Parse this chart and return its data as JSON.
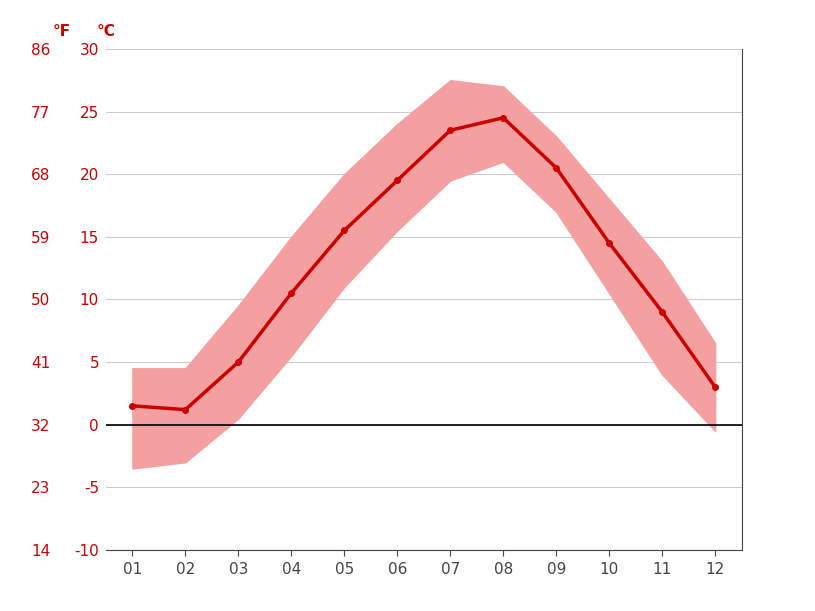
{
  "months": [
    1,
    2,
    3,
    4,
    5,
    6,
    7,
    8,
    9,
    10,
    11,
    12
  ],
  "month_labels": [
    "01",
    "02",
    "03",
    "04",
    "05",
    "06",
    "07",
    "08",
    "09",
    "10",
    "11",
    "12"
  ],
  "temp_mean": [
    1.5,
    1.2,
    5.0,
    10.5,
    15.5,
    19.5,
    23.5,
    24.5,
    20.5,
    14.5,
    9.0,
    3.0
  ],
  "temp_max": [
    4.5,
    4.5,
    9.5,
    15.0,
    20.0,
    24.0,
    27.5,
    27.0,
    23.0,
    18.0,
    13.0,
    6.5
  ],
  "temp_min": [
    -3.5,
    -3.0,
    0.5,
    5.5,
    11.0,
    15.5,
    19.5,
    21.0,
    17.0,
    10.5,
    4.0,
    -0.5
  ],
  "ylim": [
    -10,
    30
  ],
  "yticks_c": [
    -10,
    -5,
    0,
    5,
    10,
    15,
    20,
    25,
    30
  ],
  "yticks_f": [
    14,
    23,
    32,
    41,
    50,
    59,
    68,
    77,
    86
  ],
  "line_color": "#cc0000",
  "fill_color": "#f5a0a0",
  "zero_line_color": "#000000",
  "grid_color": "#cccccc",
  "axis_label_color": "#cc0000",
  "tick_label_color": "#444444",
  "background_color": "#ffffff",
  "figsize": [
    8.15,
    6.11
  ],
  "dpi": 100
}
